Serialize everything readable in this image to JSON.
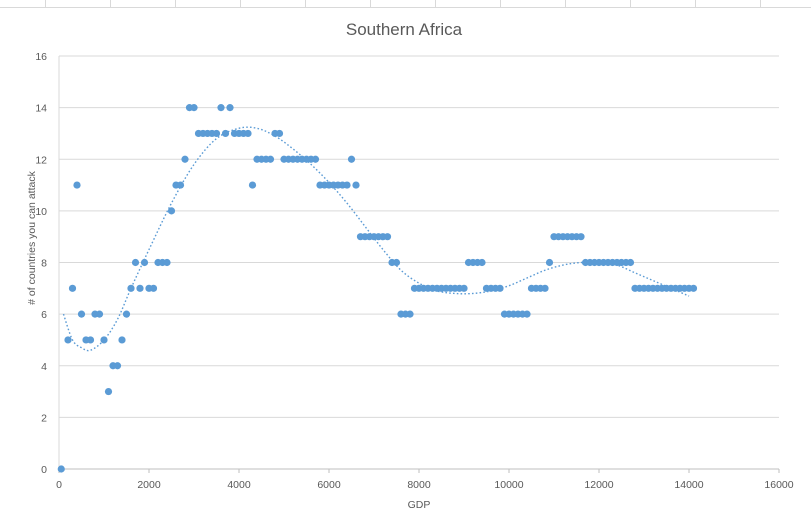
{
  "chart_data": {
    "type": "scatter",
    "title": "Southern Africa",
    "xlabel": "GDP",
    "ylabel": "# of countries you can attack",
    "xlim": [
      0,
      16000
    ],
    "ylim": [
      0,
      16
    ],
    "x_ticks": [
      "0",
      "2000",
      "4000",
      "6000",
      "8000",
      "10000",
      "12000",
      "14000",
      "16000"
    ],
    "y_ticks": [
      "0",
      "2",
      "4",
      "6",
      "8",
      "10",
      "12",
      "14",
      "16"
    ],
    "grid": "horizontal",
    "legend": "none",
    "marker_color": "#5b9bd5",
    "trendline": "polynomial (dotted)",
    "points": [
      [
        50,
        0
      ],
      [
        200,
        5
      ],
      [
        300,
        7
      ],
      [
        400,
        11
      ],
      [
        500,
        6
      ],
      [
        600,
        5
      ],
      [
        700,
        5
      ],
      [
        800,
        6
      ],
      [
        900,
        6
      ],
      [
        1000,
        5
      ],
      [
        1100,
        3
      ],
      [
        1200,
        4
      ],
      [
        1300,
        4
      ],
      [
        1400,
        5
      ],
      [
        1500,
        6
      ],
      [
        1600,
        7
      ],
      [
        1700,
        8
      ],
      [
        1800,
        7
      ],
      [
        1900,
        8
      ],
      [
        2000,
        7
      ],
      [
        2100,
        7
      ],
      [
        2200,
        8
      ],
      [
        2300,
        8
      ],
      [
        2400,
        8
      ],
      [
        2500,
        10
      ],
      [
        2600,
        11
      ],
      [
        2700,
        11
      ],
      [
        2800,
        12
      ],
      [
        2900,
        14
      ],
      [
        3000,
        14
      ],
      [
        3100,
        13
      ],
      [
        3200,
        13
      ],
      [
        3300,
        13
      ],
      [
        3400,
        13
      ],
      [
        3500,
        13
      ],
      [
        3600,
        14
      ],
      [
        3700,
        13
      ],
      [
        3800,
        14
      ],
      [
        3900,
        13
      ],
      [
        4000,
        13
      ],
      [
        4100,
        13
      ],
      [
        4200,
        13
      ],
      [
        4300,
        11
      ],
      [
        4400,
        12
      ],
      [
        4500,
        12
      ],
      [
        4600,
        12
      ],
      [
        4700,
        12
      ],
      [
        4800,
        13
      ],
      [
        4900,
        13
      ],
      [
        5000,
        12
      ],
      [
        5100,
        12
      ],
      [
        5200,
        12
      ],
      [
        5300,
        12
      ],
      [
        5400,
        12
      ],
      [
        5500,
        12
      ],
      [
        5600,
        12
      ],
      [
        5700,
        12
      ],
      [
        5800,
        11
      ],
      [
        5900,
        11
      ],
      [
        6000,
        11
      ],
      [
        6100,
        11
      ],
      [
        6200,
        11
      ],
      [
        6300,
        11
      ],
      [
        6400,
        11
      ],
      [
        6500,
        12
      ],
      [
        6600,
        11
      ],
      [
        6700,
        9
      ],
      [
        6800,
        9
      ],
      [
        6900,
        9
      ],
      [
        7000,
        9
      ],
      [
        7100,
        9
      ],
      [
        7200,
        9
      ],
      [
        7300,
        9
      ],
      [
        7400,
        8
      ],
      [
        7500,
        8
      ],
      [
        7600,
        6
      ],
      [
        7700,
        6
      ],
      [
        7800,
        6
      ],
      [
        7900,
        7
      ],
      [
        8000,
        7
      ],
      [
        8100,
        7
      ],
      [
        8200,
        7
      ],
      [
        8300,
        7
      ],
      [
        8400,
        7
      ],
      [
        8500,
        7
      ],
      [
        8600,
        7
      ],
      [
        8700,
        7
      ],
      [
        8800,
        7
      ],
      [
        8900,
        7
      ],
      [
        9000,
        7
      ],
      [
        9100,
        8
      ],
      [
        9200,
        8
      ],
      [
        9300,
        8
      ],
      [
        9400,
        8
      ],
      [
        9500,
        7
      ],
      [
        9600,
        7
      ],
      [
        9700,
        7
      ],
      [
        9800,
        7
      ],
      [
        9900,
        6
      ],
      [
        10000,
        6
      ],
      [
        10100,
        6
      ],
      [
        10200,
        6
      ],
      [
        10300,
        6
      ],
      [
        10400,
        6
      ],
      [
        10500,
        7
      ],
      [
        10600,
        7
      ],
      [
        10700,
        7
      ],
      [
        10800,
        7
      ],
      [
        10900,
        8
      ],
      [
        11000,
        9
      ],
      [
        11100,
        9
      ],
      [
        11200,
        9
      ],
      [
        11300,
        9
      ],
      [
        11400,
        9
      ],
      [
        11500,
        9
      ],
      [
        11600,
        9
      ],
      [
        11700,
        8
      ],
      [
        11800,
        8
      ],
      [
        11900,
        8
      ],
      [
        12000,
        8
      ],
      [
        12100,
        8
      ],
      [
        12200,
        8
      ],
      [
        12300,
        8
      ],
      [
        12400,
        8
      ],
      [
        12500,
        8
      ],
      [
        12600,
        8
      ],
      [
        12700,
        8
      ],
      [
        12800,
        7
      ],
      [
        12900,
        7
      ],
      [
        13000,
        7
      ],
      [
        13100,
        7
      ],
      [
        13200,
        7
      ],
      [
        13300,
        7
      ],
      [
        13400,
        7
      ],
      [
        13500,
        7
      ],
      [
        13600,
        7
      ],
      [
        13700,
        7
      ],
      [
        13800,
        7
      ],
      [
        13900,
        7
      ],
      [
        14000,
        7
      ],
      [
        14100,
        7
      ]
    ],
    "trend_points": [
      [
        100,
        6
      ],
      [
        300,
        5
      ],
      [
        500,
        4.7
      ],
      [
        700,
        4.6
      ],
      [
        1000,
        5
      ],
      [
        1300,
        5.8
      ],
      [
        1600,
        7
      ],
      [
        2000,
        8.5
      ],
      [
        2500,
        10.3
      ],
      [
        3000,
        11.8
      ],
      [
        3500,
        12.8
      ],
      [
        4000,
        13.2
      ],
      [
        4400,
        13.2
      ],
      [
        4800,
        12.9
      ],
      [
        5200,
        12.4
      ],
      [
        5600,
        11.8
      ],
      [
        6000,
        11.1
      ],
      [
        6400,
        10.3
      ],
      [
        6800,
        9.4
      ],
      [
        7200,
        8.5
      ],
      [
        7600,
        7.7
      ],
      [
        8000,
        7.2
      ],
      [
        8400,
        6.9
      ],
      [
        8800,
        6.8
      ],
      [
        9200,
        6.8
      ],
      [
        9600,
        6.9
      ],
      [
        10000,
        7.1
      ],
      [
        10400,
        7.4
      ],
      [
        10800,
        7.7
      ],
      [
        11200,
        7.9
      ],
      [
        11600,
        8.0
      ],
      [
        12000,
        8.0
      ],
      [
        12400,
        7.9
      ],
      [
        12800,
        7.6
      ],
      [
        13200,
        7.3
      ],
      [
        13600,
        7.0
      ],
      [
        14000,
        6.7
      ]
    ]
  }
}
